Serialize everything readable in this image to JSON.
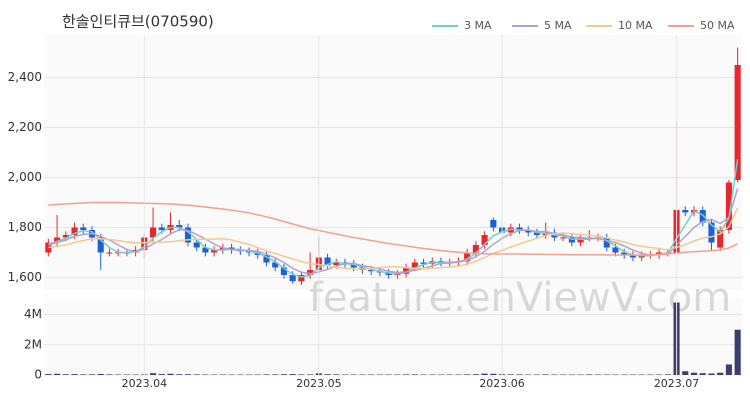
{
  "watermark": "feature.enViewV.com",
  "chart_data": [
    {
      "type": "candlestick",
      "title": "한솔인티큐브(070590)",
      "up_color": "#e8262b",
      "down_color": "#1f5fd8",
      "open": [
        1700,
        1740,
        1760,
        1770,
        1800,
        1790,
        1760,
        1700,
        1700,
        1700,
        1700,
        1710,
        1760,
        1800,
        1790,
        1810,
        1800,
        1740,
        1720,
        1700,
        1710,
        1720,
        1710,
        1705,
        1700,
        1690,
        1660,
        1640,
        1610,
        1585,
        1610,
        1630,
        1680,
        1650,
        1660,
        1655,
        1640,
        1630,
        1625,
        1620,
        1610,
        1615,
        1640,
        1660,
        1655,
        1665,
        1660,
        1660,
        1665,
        1700,
        1730,
        1830,
        1800,
        1780,
        1800,
        1790,
        1780,
        1770,
        1780,
        1760,
        1760,
        1740,
        1760,
        1760,
        1760,
        1720,
        1700,
        1690,
        1680,
        1690,
        1690,
        1700,
        1700,
        1870,
        1860,
        1870,
        1820,
        1720,
        1790,
        1990
      ],
      "high": [
        1755,
        1850,
        1785,
        1820,
        1815,
        1805,
        1775,
        1715,
        1715,
        1715,
        1725,
        1775,
        1880,
        1815,
        1860,
        1830,
        1815,
        1755,
        1735,
        1725,
        1735,
        1735,
        1725,
        1720,
        1715,
        1705,
        1675,
        1655,
        1625,
        1625,
        1700,
        1760,
        1695,
        1675,
        1675,
        1670,
        1655,
        1645,
        1640,
        1635,
        1630,
        1655,
        1675,
        1675,
        1680,
        1680,
        1675,
        1680,
        1715,
        1745,
        1785,
        1840,
        1815,
        1815,
        1815,
        1805,
        1795,
        1820,
        1795,
        1775,
        1775,
        1775,
        1790,
        1775,
        1775,
        1735,
        1715,
        1705,
        1705,
        1705,
        1715,
        1715,
        2220,
        1885,
        1885,
        1885,
        1835,
        1805,
        1990,
        2520
      ],
      "low": [
        1685,
        1725,
        1745,
        1755,
        1775,
        1745,
        1630,
        1685,
        1685,
        1685,
        1685,
        1680,
        1745,
        1775,
        1775,
        1785,
        1725,
        1705,
        1685,
        1685,
        1695,
        1695,
        1690,
        1685,
        1675,
        1645,
        1625,
        1595,
        1575,
        1570,
        1595,
        1615,
        1635,
        1635,
        1640,
        1625,
        1615,
        1610,
        1605,
        1595,
        1595,
        1600,
        1625,
        1640,
        1640,
        1645,
        1645,
        1645,
        1650,
        1685,
        1715,
        1785,
        1765,
        1765,
        1775,
        1765,
        1755,
        1755,
        1745,
        1745,
        1725,
        1725,
        1745,
        1745,
        1705,
        1685,
        1675,
        1665,
        1665,
        1675,
        1675,
        1685,
        1690,
        1845,
        1845,
        1805,
        1710,
        1705,
        1775,
        1980
      ],
      "close": [
        1740,
        1760,
        1770,
        1800,
        1790,
        1760,
        1700,
        1700,
        1700,
        1700,
        1710,
        1760,
        1800,
        1790,
        1810,
        1800,
        1740,
        1720,
        1700,
        1710,
        1720,
        1710,
        1705,
        1700,
        1690,
        1660,
        1640,
        1610,
        1585,
        1610,
        1630,
        1680,
        1650,
        1660,
        1655,
        1640,
        1630,
        1625,
        1620,
        1610,
        1615,
        1640,
        1660,
        1655,
        1665,
        1660,
        1660,
        1665,
        1700,
        1730,
        1770,
        1800,
        1780,
        1800,
        1790,
        1780,
        1770,
        1780,
        1760,
        1760,
        1740,
        1760,
        1760,
        1760,
        1720,
        1700,
        1690,
        1680,
        1690,
        1690,
        1700,
        1700,
        1870,
        1860,
        1870,
        1820,
        1740,
        1790,
        1980,
        2450
      ],
      "series": [
        {
          "name": "3 MA",
          "color": "#6fcfcf",
          "values": [
            1735,
            1745,
            1757,
            1777,
            1787,
            1783,
            1750,
            1720,
            1700,
            1700,
            1703,
            1723,
            1757,
            1783,
            1800,
            1800,
            1783,
            1753,
            1720,
            1710,
            1710,
            1713,
            1712,
            1705,
            1698,
            1683,
            1663,
            1637,
            1612,
            1602,
            1608,
            1640,
            1653,
            1663,
            1655,
            1652,
            1642,
            1632,
            1625,
            1618,
            1615,
            1622,
            1638,
            1652,
            1660,
            1660,
            1662,
            1662,
            1675,
            1698,
            1733,
            1767,
            1783,
            1793,
            1790,
            1790,
            1780,
            1777,
            1770,
            1767,
            1753,
            1753,
            1753,
            1760,
            1747,
            1727,
            1703,
            1690,
            1687,
            1687,
            1693,
            1697,
            1757,
            1810,
            1867,
            1850,
            1810,
            1783,
            1837,
            2073
          ]
        },
        {
          "name": "5 MA",
          "color": "#b4a0d0",
          "values": [
            1730,
            1740,
            1750,
            1765,
            1772,
            1776,
            1764,
            1750,
            1730,
            1712,
            1702,
            1714,
            1734,
            1752,
            1774,
            1792,
            1788,
            1772,
            1754,
            1734,
            1718,
            1712,
            1709,
            1709,
            1705,
            1693,
            1679,
            1660,
            1637,
            1621,
            1615,
            1623,
            1633,
            1646,
            1655,
            1657,
            1647,
            1642,
            1634,
            1625,
            1620,
            1622,
            1629,
            1636,
            1647,
            1656,
            1658,
            1661,
            1670,
            1683,
            1705,
            1733,
            1756,
            1776,
            1788,
            1790,
            1784,
            1784,
            1776,
            1770,
            1762,
            1760,
            1756,
            1756,
            1748,
            1740,
            1726,
            1710,
            1696,
            1690,
            1692,
            1692,
            1730,
            1764,
            1800,
            1824,
            1832,
            1816,
            1840,
            1956
          ]
        },
        {
          "name": "10 MA",
          "color": "#f5c890",
          "values": [
            1720,
            1725,
            1730,
            1740,
            1748,
            1755,
            1755,
            1752,
            1748,
            1742,
            1739,
            1739,
            1742,
            1741,
            1743,
            1747,
            1751,
            1753,
            1753,
            1754,
            1755,
            1750,
            1741,
            1732,
            1720,
            1706,
            1696,
            1685,
            1674,
            1664,
            1655,
            1652,
            1646,
            1641,
            1637,
            1635,
            1634,
            1636,
            1640,
            1643,
            1643,
            1639,
            1637,
            1636,
            1637,
            1639,
            1642,
            1646,
            1654,
            1665,
            1680,
            1696,
            1708,
            1722,
            1734,
            1746,
            1757,
            1769,
            1775,
            1778,
            1775,
            1771,
            1769,
            1765,
            1758,
            1750,
            1742,
            1732,
            1725,
            1720,
            1716,
            1710,
            1721,
            1731,
            1746,
            1758,
            1763,
            1774,
            1803,
            1879
          ]
        },
        {
          "name": "50 MA",
          "color": "#f4a08e",
          "values": [
            1890,
            1892,
            1894,
            1896,
            1898,
            1900,
            1900,
            1900,
            1900,
            1899,
            1898,
            1897,
            1896,
            1895,
            1894,
            1892,
            1889,
            1886,
            1882,
            1878,
            1874,
            1869,
            1864,
            1858,
            1851,
            1843,
            1834,
            1824,
            1814,
            1804,
            1795,
            1788,
            1781,
            1774,
            1767,
            1760,
            1754,
            1748,
            1742,
            1736,
            1731,
            1726,
            1721,
            1716,
            1712,
            1708,
            1704,
            1701,
            1698,
            1696,
            1695,
            1694,
            1694,
            1694,
            1694,
            1693,
            1693,
            1692,
            1692,
            1692,
            1691,
            1691,
            1691,
            1691,
            1690,
            1690,
            1690,
            1690,
            1690,
            1691,
            1692,
            1694,
            1698,
            1701,
            1703,
            1705,
            1707,
            1710,
            1718,
            1735
          ]
        }
      ],
      "ylim": [
        1550,
        2570
      ],
      "yticks": [
        {
          "value": 1600,
          "label": "1,600"
        },
        {
          "value": 1800,
          "label": "1,800"
        },
        {
          "value": 2000,
          "label": "2,000"
        },
        {
          "value": 2200,
          "label": "2,200"
        },
        {
          "value": 2400,
          "label": "2,400"
        }
      ],
      "grid": true
    },
    {
      "type": "bar",
      "color": "#3c3f6e",
      "categories": [
        null,
        null,
        null,
        null,
        null,
        null,
        null,
        null,
        null,
        null,
        null,
        "2023.04",
        null,
        null,
        null,
        null,
        null,
        null,
        null,
        null,
        null,
        null,
        null,
        null,
        null,
        null,
        null,
        null,
        null,
        null,
        null,
        "2023.05",
        null,
        null,
        null,
        null,
        null,
        null,
        null,
        null,
        null,
        null,
        null,
        null,
        null,
        null,
        null,
        null,
        null,
        null,
        null,
        null,
        "2023.06",
        null,
        null,
        null,
        null,
        null,
        null,
        null,
        null,
        null,
        null,
        null,
        null,
        null,
        null,
        null,
        null,
        null,
        null,
        null,
        "2023.07",
        null,
        null,
        null,
        null,
        null,
        null,
        null
      ],
      "values": [
        60000,
        80000,
        50000,
        60000,
        40000,
        40000,
        70000,
        40000,
        30000,
        30000,
        30000,
        40000,
        120000,
        60000,
        80000,
        50000,
        50000,
        40000,
        30000,
        30000,
        30000,
        30000,
        30000,
        30000,
        30000,
        40000,
        40000,
        50000,
        60000,
        40000,
        40000,
        110000,
        50000,
        40000,
        30000,
        30000,
        30000,
        30000,
        30000,
        30000,
        30000,
        40000,
        40000,
        30000,
        30000,
        30000,
        30000,
        30000,
        40000,
        50000,
        90000,
        80000,
        50000,
        40000,
        40000,
        30000,
        30000,
        40000,
        30000,
        30000,
        30000,
        30000,
        40000,
        30000,
        30000,
        30000,
        30000,
        30000,
        30000,
        30000,
        30000,
        40000,
        4800000,
        250000,
        150000,
        120000,
        100000,
        150000,
        700000,
        3000000
      ],
      "ylim": [
        0,
        5100000
      ],
      "yticks": [
        0,
        {
          "value": 2000000,
          "label": "2M"
        },
        {
          "value": 4000000,
          "label": "4M"
        }
      ],
      "grid": true
    }
  ]
}
